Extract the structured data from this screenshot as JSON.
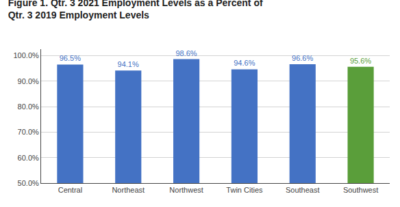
{
  "chart_data": {
    "type": "bar",
    "title": "Figure 1. Qtr. 3 2021 Employment Levels as a Percent of\nQtr. 3 2019 Employment Levels",
    "categories": [
      "Central",
      "Northeast",
      "Northwest",
      "Twin Cities",
      "Southeast",
      "Southwest"
    ],
    "values": [
      96.5,
      94.1,
      98.6,
      94.6,
      96.6,
      95.6
    ],
    "value_labels": [
      "96.5%",
      "94.1%",
      "98.6%",
      "94.6%",
      "96.6%",
      "95.6%"
    ],
    "data_labels": true,
    "colors": [
      "#4472C4",
      "#4472C4",
      "#4472C4",
      "#4472C4",
      "#4472C4",
      "#5A9E3A"
    ],
    "ylim": [
      50.0,
      102.5
    ],
    "yticks": [
      {
        "value": 50.0,
        "label": "50.0%"
      },
      {
        "value": 60.0,
        "label": "60.0%"
      },
      {
        "value": 70.0,
        "label": "70.0%"
      },
      {
        "value": 80.0,
        "label": "80.0%"
      },
      {
        "value": 90.0,
        "label": "90.0%"
      },
      {
        "value": 100.0,
        "label": "100.0%"
      }
    ],
    "grid": true
  }
}
